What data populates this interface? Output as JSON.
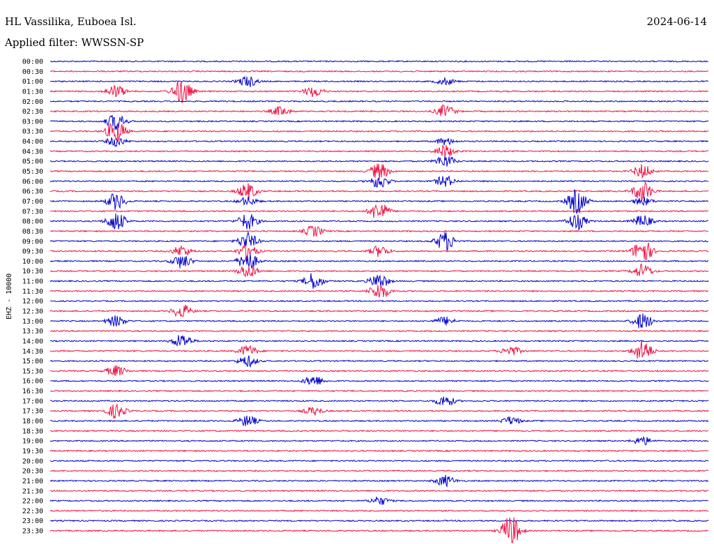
{
  "header": {
    "station": "HL Vassilika, Euboea Isl.",
    "date": "2024-06-14",
    "filter_label": "Applied filter: WWSSN-SP"
  },
  "chart_data": {
    "type": "line",
    "channel_label": "EHZ - 10000",
    "tick_labels": [
      "00:00",
      "00:30",
      "01:00",
      "01:30",
      "02:00",
      "02:30",
      "03:00",
      "03:30",
      "04:00",
      "04:30",
      "05:00",
      "05:30",
      "06:00",
      "06:30",
      "07:00",
      "07:30",
      "08:00",
      "08:30",
      "09:00",
      "09:30",
      "10:00",
      "10:30",
      "11:00",
      "11:30",
      "12:00",
      "12:30",
      "13:00",
      "13:30",
      "14:00",
      "14:30",
      "15:00",
      "15:30",
      "16:00",
      "16:30",
      "17:00",
      "17:30",
      "18:00",
      "18:30",
      "19:00",
      "19:30",
      "20:00",
      "20:30",
      "21:00",
      "21:30",
      "22:00",
      "22:30",
      "23:00",
      "23:30"
    ],
    "colors": {
      "even_trace": "#0000cc",
      "odd_trace": "#ee1144"
    },
    "events": [
      [
        2.3,
        8
      ],
      [
        2.6,
        5
      ],
      [
        3.1,
        9
      ],
      [
        3.2,
        18
      ],
      [
        5.35,
        7
      ],
      [
        5.6,
        9
      ],
      [
        6.1,
        12
      ],
      [
        7.1,
        16
      ],
      [
        3.4,
        8
      ],
      [
        8.1,
        7
      ],
      [
        8.6,
        5
      ],
      [
        9.6,
        9
      ],
      [
        10.6,
        9
      ],
      [
        11.9,
        10
      ],
      [
        11.5,
        12
      ],
      [
        12.6,
        8
      ],
      [
        13.9,
        9
      ],
      [
        14.3,
        6
      ],
      [
        14.8,
        18
      ],
      [
        12.5,
        10
      ],
      [
        13.3,
        12
      ],
      [
        13.9,
        6
      ],
      [
        14.1,
        12
      ],
      [
        15.5,
        14
      ],
      [
        16.8,
        12
      ],
      [
        14.9,
        6
      ],
      [
        16.1,
        14
      ],
      [
        16.9,
        9
      ],
      [
        16.3,
        12
      ],
      [
        17.4,
        8
      ],
      [
        18.3,
        12
      ],
      [
        18.6,
        14
      ],
      [
        19.2,
        8
      ],
      [
        19.9,
        18
      ],
      [
        19.3,
        10
      ],
      [
        19.5,
        8
      ],
      [
        20.2,
        10
      ],
      [
        20.3,
        14
      ],
      [
        21.3,
        10
      ],
      [
        21.9,
        10
      ],
      [
        22.4,
        12
      ],
      [
        22.5,
        11
      ],
      [
        23.5,
        12
      ],
      [
        25.2,
        10
      ],
      [
        26.1,
        8
      ],
      [
        26.6,
        6
      ],
      [
        26.9,
        12
      ],
      [
        28.2,
        10
      ],
      [
        29.9,
        16
      ],
      [
        29.3,
        8
      ],
      [
        29.7,
        7
      ],
      [
        30.3,
        8
      ],
      [
        31.1,
        8
      ],
      [
        32.4,
        8
      ],
      [
        34.6,
        8
      ],
      [
        35.1,
        10
      ],
      [
        35.4,
        6
      ],
      [
        36.3,
        8
      ],
      [
        36.7,
        6
      ],
      [
        38.9,
        6
      ],
      [
        42.6,
        8
      ],
      [
        44.5,
        6
      ],
      [
        47.7,
        22
      ]
    ]
  }
}
